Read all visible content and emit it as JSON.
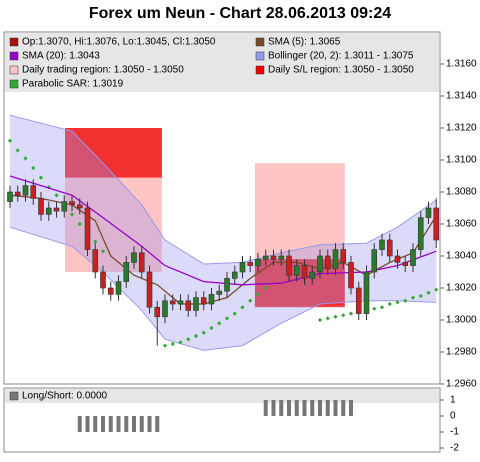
{
  "chart_data": [
    {
      "type": "candlestick",
      "title": "Forex um Neun - Chart 28.06.2013 09:24",
      "ylim": [
        1.296,
        1.318
      ],
      "yticks": [
        {
          "value": 1.296,
          "label": "1.2960"
        },
        {
          "value": 1.298,
          "label": "1.2980"
        },
        {
          "value": 1.3,
          "label": "1.3000"
        },
        {
          "value": 1.302,
          "label": "1.3020"
        },
        {
          "value": 1.304,
          "label": "1.3040"
        },
        {
          "value": 1.306,
          "label": "1.3060"
        },
        {
          "value": 1.308,
          "label": "1.3080"
        },
        {
          "value": 1.31,
          "label": "1.3100"
        },
        {
          "value": 1.312,
          "label": "1.3120"
        },
        {
          "value": 1.314,
          "label": "1.3140"
        },
        {
          "value": 1.316,
          "label": "1.3160"
        }
      ],
      "ohlc": {
        "name": "Op:1.3070, Hi:1.3076, Lo:1.3045, Cl:1.3050",
        "color": "#aa1111",
        "up_color": "#2a7a2a",
        "down_color": "#cc2020",
        "open": [
          1.3074,
          1.308,
          1.3078,
          1.3084,
          1.3076,
          1.3066,
          1.307,
          1.3068,
          1.3074,
          1.3072,
          1.307,
          1.3044,
          1.303,
          1.302,
          1.3016,
          1.3024,
          1.3036,
          1.3042,
          1.303,
          1.3008,
          1.3002,
          1.3012,
          1.301,
          1.3012,
          1.3006,
          1.3014,
          1.301,
          1.3016,
          1.3018,
          1.3026,
          1.303,
          1.3036,
          1.3034,
          1.3038,
          1.304,
          1.3038,
          1.304,
          1.3028,
          1.3034,
          1.3026,
          1.303,
          1.304,
          1.3032,
          1.3044,
          1.3036,
          1.302,
          1.3004,
          1.303,
          1.3044,
          1.305,
          1.304,
          1.3036,
          1.3034,
          1.3044,
          1.3064,
          1.307
        ],
        "high": [
          1.3084,
          1.3084,
          1.3088,
          1.3088,
          1.308,
          1.3074,
          1.3074,
          1.3078,
          1.3078,
          1.3076,
          1.3074,
          1.3048,
          1.3034,
          1.3024,
          1.3028,
          1.304,
          1.3046,
          1.3046,
          1.3034,
          1.3012,
          1.3016,
          1.3016,
          1.3016,
          1.3016,
          1.3018,
          1.3018,
          1.302,
          1.3022,
          1.303,
          1.3034,
          1.304,
          1.304,
          1.3042,
          1.3044,
          1.3044,
          1.3044,
          1.3044,
          1.3038,
          1.3038,
          1.3034,
          1.3044,
          1.3044,
          1.3048,
          1.3048,
          1.304,
          1.3024,
          1.3034,
          1.3048,
          1.3054,
          1.3054,
          1.3044,
          1.304,
          1.3048,
          1.3068,
          1.3074,
          1.3076
        ],
        "low": [
          1.307,
          1.3074,
          1.3074,
          1.3072,
          1.3062,
          1.3062,
          1.3064,
          1.3064,
          1.3068,
          1.3066,
          1.304,
          1.3026,
          1.3016,
          1.3012,
          1.3012,
          1.302,
          1.3032,
          1.3026,
          1.3004,
          1.2984,
          1.2998,
          1.3006,
          1.3006,
          1.3002,
          1.3002,
          1.3006,
          1.3006,
          1.3012,
          1.3014,
          1.3022,
          1.3026,
          1.303,
          1.303,
          1.3034,
          1.3034,
          1.3034,
          1.3024,
          1.3024,
          1.3022,
          1.3022,
          1.3026,
          1.3028,
          1.3028,
          1.3032,
          1.3016,
          1.3,
          1.3,
          1.3026,
          1.304,
          1.3036,
          1.3032,
          1.303,
          1.303,
          1.304,
          1.306,
          1.3045
        ],
        "close": [
          1.308,
          1.3078,
          1.3084,
          1.3076,
          1.3066,
          1.307,
          1.3068,
          1.3074,
          1.3072,
          1.307,
          1.3044,
          1.303,
          1.302,
          1.3016,
          1.3024,
          1.3036,
          1.3042,
          1.303,
          1.3008,
          1.3002,
          1.3012,
          1.301,
          1.3012,
          1.3006,
          1.3014,
          1.301,
          1.3016,
          1.3018,
          1.3026,
          1.303,
          1.3036,
          1.3034,
          1.3038,
          1.304,
          1.3038,
          1.304,
          1.3028,
          1.3034,
          1.3026,
          1.303,
          1.304,
          1.3032,
          1.3044,
          1.3036,
          1.302,
          1.3004,
          1.303,
          1.3044,
          1.305,
          1.304,
          1.3036,
          1.3034,
          1.3044,
          1.3064,
          1.307,
          1.305
        ]
      },
      "lines": [
        {
          "name": "SMA (5): 1.3065",
          "color": "#7a4a2a",
          "x": [
            0,
            4,
            8,
            11,
            13,
            16,
            19,
            22,
            25,
            28,
            31,
            34,
            37,
            40,
            43,
            46,
            49,
            52,
            55
          ],
          "values": [
            1.3078,
            1.3076,
            1.3072,
            1.3062,
            1.304,
            1.3028,
            1.3022,
            1.301,
            1.301,
            1.3014,
            1.3026,
            1.3036,
            1.3036,
            1.3032,
            1.3036,
            1.3028,
            1.3036,
            1.3042,
            1.3065
          ]
        },
        {
          "name": "SMA (20): 1.3043",
          "color": "#9900cc",
          "x": [
            0,
            8,
            12,
            17,
            20,
            25,
            30,
            35,
            40,
            46,
            50,
            55
          ],
          "values": [
            1.309,
            1.3078,
            1.3064,
            1.3046,
            1.3034,
            1.3024,
            1.3022,
            1.3023,
            1.3029,
            1.303,
            1.3034,
            1.3043
          ]
        }
      ],
      "band": {
        "name": "Bollinger (20, 2): 1.3011 - 1.3075",
        "color": "#9999ee",
        "x": [
          0,
          8,
          12,
          17,
          20,
          25,
          30,
          35,
          40,
          46,
          50,
          55
        ],
        "upper": [
          1.3128,
          1.3118,
          1.3098,
          1.3072,
          1.305,
          1.3035,
          1.3036,
          1.3042,
          1.3047,
          1.3048,
          1.3058,
          1.3075
        ],
        "lower": [
          1.3058,
          1.3046,
          1.303,
          1.3006,
          1.2988,
          1.2981,
          1.2984,
          1.2998,
          1.301,
          1.3012,
          1.3012,
          1.3011
        ]
      },
      "regions": [
        {
          "name": "Daily trading region: 1.3050 - 1.3050",
          "color": "#ffc4c4",
          "items": [
            {
              "x": [
                7.1,
                19.6
              ],
              "low": 1.303,
              "high": 1.312
            },
            {
              "x": [
                31.6,
                43.2
              ],
              "low": 1.3009,
              "high": 1.3098
            }
          ]
        },
        {
          "name": "Daily S/L region: 1.3050 - 1.3050",
          "color": "#ee0000",
          "items": [
            {
              "x": [
                7.1,
                19.6
              ],
              "low": 1.3089,
              "high": 1.312
            },
            {
              "x": [
                31.6,
                43.2
              ],
              "low": 1.3008,
              "high": 1.3038
            }
          ]
        }
      ],
      "sar": {
        "name": "Parabolic SAR: 1.3019",
        "color": "#33aa33",
        "x": [
          0,
          1,
          2,
          3,
          4,
          5,
          6,
          7,
          8,
          9,
          10,
          11,
          12,
          20,
          21,
          22,
          23,
          24,
          25,
          26,
          27,
          28,
          29,
          30,
          31,
          32,
          33,
          40,
          41,
          42,
          43,
          44,
          45,
          46,
          47,
          48,
          49,
          50,
          51,
          52,
          53,
          54,
          55
        ],
        "values": [
          1.3112,
          1.3106,
          1.3101,
          1.3095,
          1.3089,
          1.3083,
          1.3078,
          1.3072,
          1.3066,
          1.306,
          1.3055,
          1.3049,
          1.3043,
          1.2984,
          1.2985,
          1.2986,
          1.2988,
          1.299,
          1.2992,
          1.2995,
          1.2998,
          1.3001,
          1.3004,
          1.3008,
          1.3012,
          1.3016,
          1.302,
          1.3,
          1.3001,
          1.3002,
          1.3003,
          1.3004,
          1.3005,
          1.3006,
          1.3007,
          1.3008,
          1.301,
          1.3011,
          1.3012,
          1.3014,
          1.3015,
          1.3017,
          1.3019
        ]
      }
    },
    {
      "type": "bar",
      "name": "Long/Short: 0.0000",
      "color": "#777777",
      "ylim": [
        -2.25,
        1.75
      ],
      "yticks": [
        1,
        0,
        -1,
        -2
      ],
      "values": [
        0,
        0,
        0,
        0,
        0,
        0,
        0,
        0,
        0,
        -1,
        -1,
        -1,
        -1,
        -1,
        -1,
        -1,
        -1,
        -1,
        -1,
        -1,
        0,
        0,
        0,
        0,
        0,
        0,
        0,
        0,
        0,
        0,
        0,
        0,
        0,
        1,
        1,
        1,
        1,
        1,
        1,
        1,
        1,
        1,
        1,
        1,
        1,
        0,
        0,
        0,
        0,
        0,
        0,
        0,
        0,
        0,
        0,
        0
      ]
    }
  ]
}
